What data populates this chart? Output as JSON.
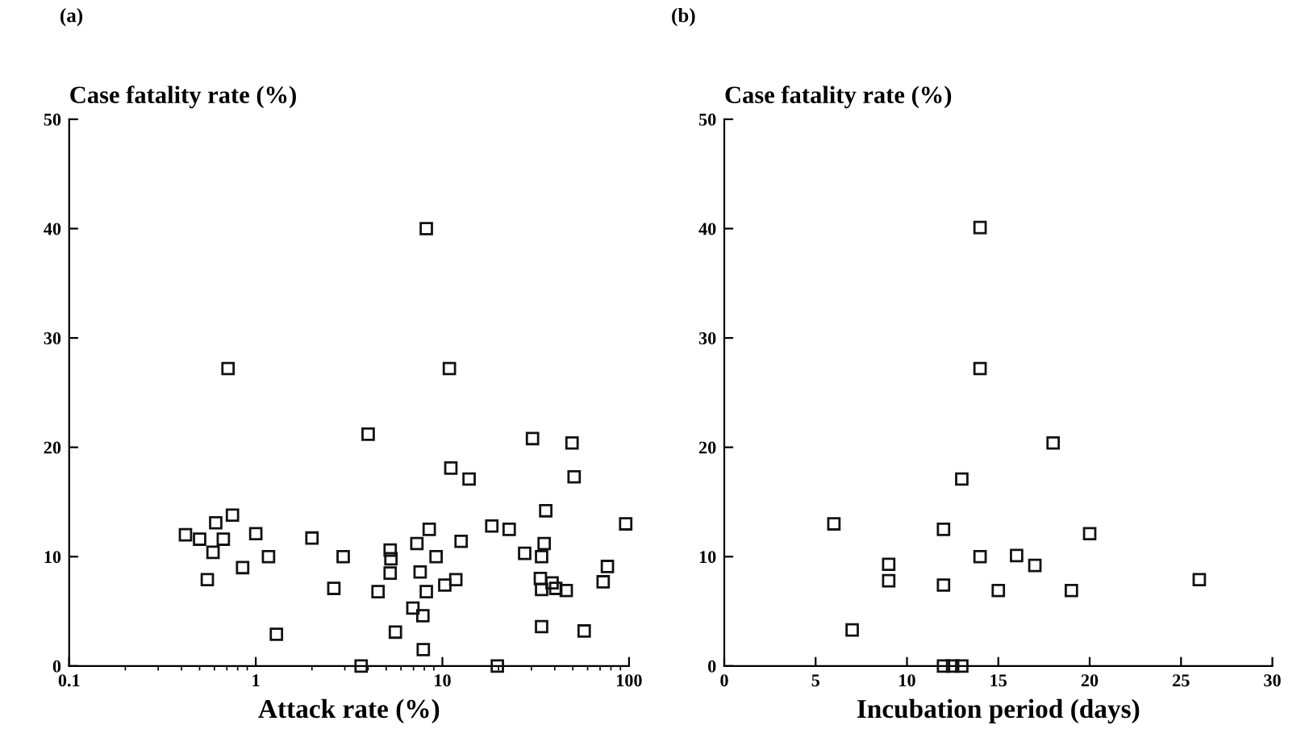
{
  "chart_data": [
    {
      "type": "scatter",
      "title": "(a)",
      "xlabel": "Attack rate (%)",
      "ylabel": "Case fatality rate (%)",
      "log": "x",
      "marker": "square",
      "grid": false,
      "xlim": [
        0.1,
        100
      ],
      "xticks": [
        0.1,
        1,
        10,
        100
      ],
      "ylim": [
        0,
        50
      ],
      "yticks": [
        0,
        10,
        20,
        30,
        40,
        50
      ],
      "series": [
        {
          "color": "#111111",
          "x": [
            8.2,
            0.71,
            10.9,
            4.0,
            30.4,
            49.5,
            11.1,
            13.9,
            50.8,
            0.75,
            0.61,
            35.8,
            96,
            18.4,
            22.8,
            8.5,
            0.42,
            0.5,
            0.67,
            1.0,
            2.0,
            7.3,
            12.6,
            35.1,
            0.59,
            1.17,
            2.94,
            5.25,
            5.3,
            9.25,
            27.6,
            34.0,
            0.85,
            76.6,
            0.55,
            5.25,
            7.6,
            2.62,
            4.52,
            8.2,
            10.3,
            11.8,
            33.5,
            38.7,
            34.0,
            40.5,
            46.1,
            72.7,
            6.95,
            7.86,
            1.29,
            5.6,
            34.0,
            57.5,
            7.9,
            3.67,
            19.7
          ],
          "values": [
            40.0,
            27.2,
            27.2,
            21.2,
            20.8,
            20.4,
            18.1,
            17.1,
            17.3,
            13.8,
            13.1,
            14.2,
            13.0,
            12.8,
            12.5,
            12.5,
            12.0,
            11.6,
            11.6,
            12.1,
            11.7,
            11.2,
            11.4,
            11.2,
            10.4,
            10.0,
            10.0,
            10.6,
            9.8,
            10.0,
            10.3,
            10.0,
            9.0,
            9.1,
            7.9,
            8.5,
            8.6,
            7.1,
            6.8,
            6.8,
            7.4,
            7.9,
            8.0,
            7.6,
            7.0,
            7.1,
            6.9,
            7.7,
            5.3,
            4.6,
            2.9,
            3.1,
            3.6,
            3.2,
            1.5,
            0,
            0
          ]
        }
      ]
    },
    {
      "type": "scatter",
      "title": "(b)",
      "xlabel": "Incubation period (days)",
      "ylabel": "Case fatality rate (%)",
      "marker": "square",
      "grid": false,
      "xlim": [
        0,
        30
      ],
      "xticks": [
        0,
        5,
        10,
        15,
        20,
        25,
        30
      ],
      "ylim": [
        0,
        50
      ],
      "yticks": [
        0,
        10,
        20,
        30,
        40,
        50
      ],
      "series": [
        {
          "color": "#111111",
          "x": [
            14,
            14,
            18,
            13,
            6,
            12,
            20,
            14,
            16,
            9,
            17,
            9,
            12,
            15,
            19,
            26,
            7,
            12,
            12.5,
            13
          ],
          "values": [
            40.1,
            27.2,
            20.4,
            17.1,
            13.0,
            12.5,
            12.1,
            10.0,
            10.1,
            9.3,
            9.2,
            7.8,
            7.4,
            6.9,
            6.9,
            7.9,
            3.3,
            0,
            0,
            0
          ]
        }
      ]
    }
  ]
}
